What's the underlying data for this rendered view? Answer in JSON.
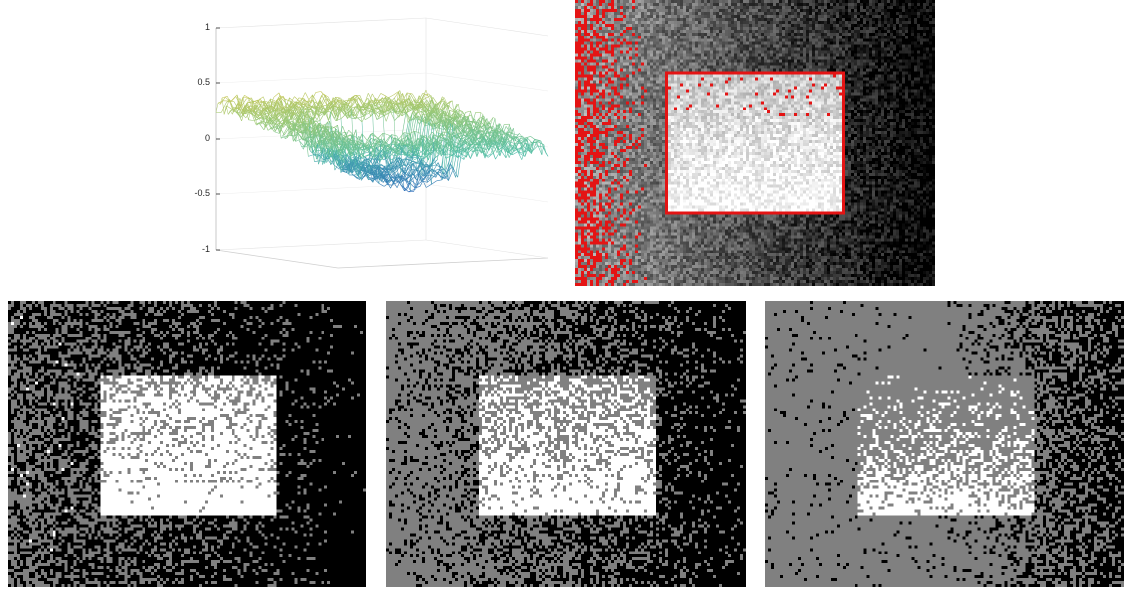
{
  "surface_plot": {
    "z_tick_labels": [
      "1",
      "0.5",
      "0",
      "-0.5",
      "-1"
    ]
  },
  "colors": {
    "background": "#ffffff",
    "overlay_red": "#e41414",
    "surface_high": "#e6c84a",
    "surface_mid": "#5fc7a8",
    "surface_low": "#2a6fc0",
    "axis_line": "#cfcfcf",
    "segment_gray": "#808080"
  },
  "images": [
    {
      "name": "noisy-image-red-overlay",
      "kind": "grayscale-with-red-markers"
    },
    {
      "name": "segmentation-result-1",
      "kind": "binary-segmentation"
    },
    {
      "name": "segmentation-result-2",
      "kind": "three-level-segmentation"
    },
    {
      "name": "segmentation-result-3",
      "kind": "three-level-segmentation"
    }
  ]
}
